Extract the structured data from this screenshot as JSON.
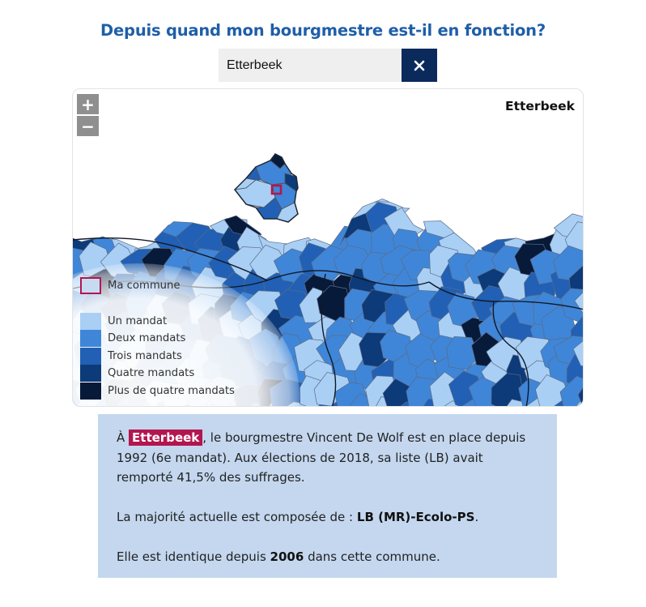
{
  "header": {
    "title": "Depuis quand mon bourgmestre est-il en fonction?"
  },
  "search": {
    "value": "Etterbeek",
    "clear_label": "×"
  },
  "map": {
    "zoom_in_label": "+",
    "zoom_out_label": "−",
    "selected_commune": "Etterbeek",
    "legend": {
      "my_commune": {
        "label": "Ma commune",
        "color": "#b3164f"
      },
      "classes": [
        {
          "label": "Un mandat",
          "color": "#a9cff5"
        },
        {
          "label": "Deux mandats",
          "color": "#3f86d8"
        },
        {
          "label": "Trois mandats",
          "color": "#2160b4"
        },
        {
          "label": "Quatre mandats",
          "color": "#0d3a78"
        },
        {
          "label": "Plus de quatre mandats",
          "color": "#081a3a"
        }
      ]
    }
  },
  "info": {
    "line1_prefix": "À",
    "commune": "Etterbeek",
    "line1_rest": ", le bourgmestre Vincent De Wolf est en place depuis 1992 (6e mandat). Aux élections de 2018, sa liste (LB) avait remporté 41,5% des suffrages.",
    "majority_prefix": "La majorité actuelle est composée de :",
    "majority_value": "LB (MR)-Ecolo-PS",
    "majority_suffix": ".",
    "identical_prefix": "Elle est identique depuis",
    "identical_year": "2006",
    "identical_suffix": "dans cette commune."
  }
}
